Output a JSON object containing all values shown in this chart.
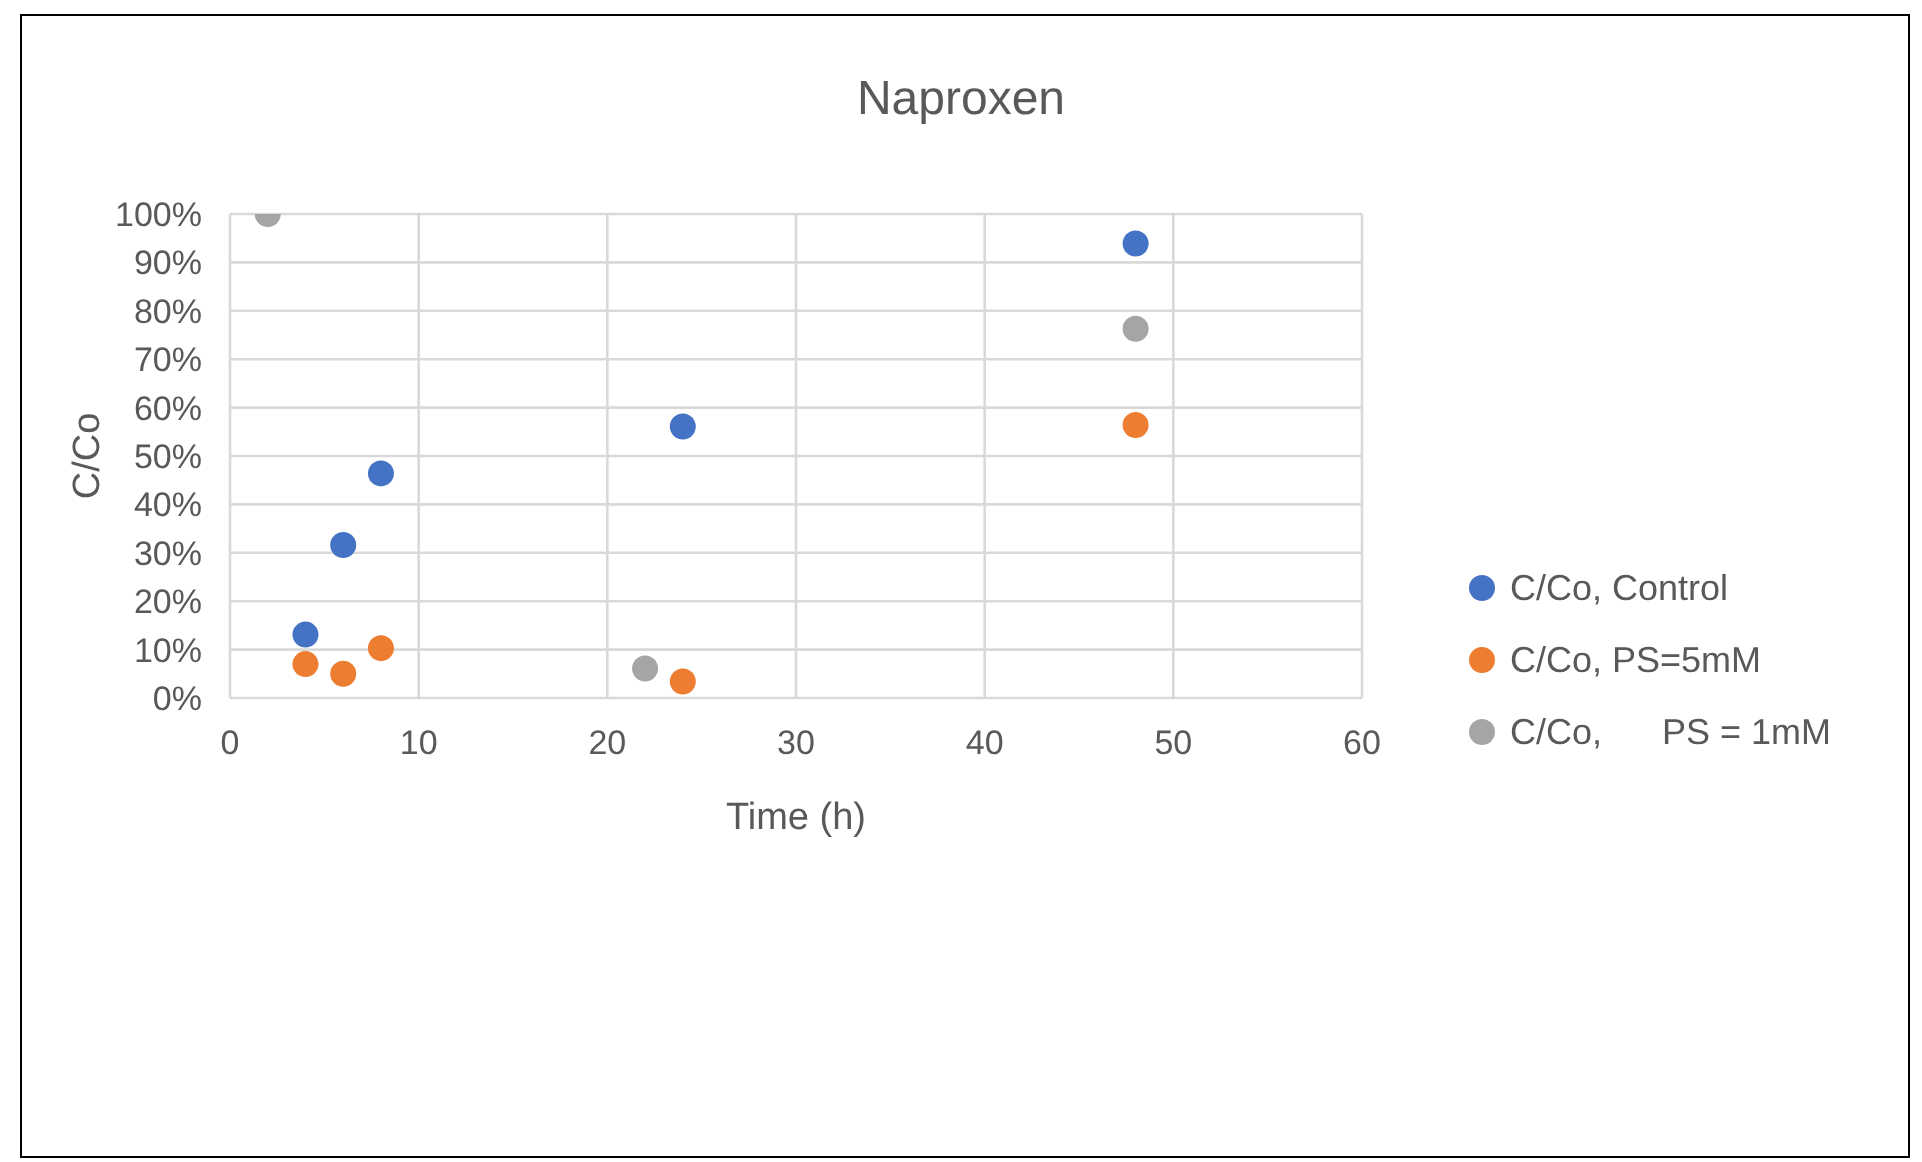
{
  "chart_data": {
    "type": "scatter",
    "title": "Naproxen",
    "xlabel": "Time (h)",
    "ylabel": "C/Co",
    "xlim": [
      0,
      60
    ],
    "xticks": [
      0,
      10,
      20,
      30,
      40,
      50,
      60
    ],
    "ylim": [
      0,
      100
    ],
    "yticks": [
      {
        "value": 0,
        "label": "0%"
      },
      {
        "value": 10,
        "label": "10%"
      },
      {
        "value": 20,
        "label": "20%"
      },
      {
        "value": 30,
        "label": "30%"
      },
      {
        "value": 40,
        "label": "40%"
      },
      {
        "value": 50,
        "label": "50%"
      },
      {
        "value": 60,
        "label": "60%"
      },
      {
        "value": 70,
        "label": "70%"
      },
      {
        "value": 80,
        "label": "80%"
      },
      {
        "value": 90,
        "label": "90%"
      },
      {
        "value": 100,
        "label": "100%"
      }
    ],
    "grid": true,
    "legend": "right",
    "marker": "circle",
    "series": [
      {
        "name": "C/Co, Control",
        "color": "#4472c4",
        "x": [
          4,
          6,
          8,
          24,
          48
        ],
        "values": [
          13.1,
          31.6,
          46.4,
          56.1,
          93.9
        ]
      },
      {
        "name": "C/Co, PS=5mM",
        "color": "#ed7d31",
        "x": [
          4,
          6,
          8,
          24,
          48
        ],
        "values": [
          7.0,
          5.0,
          10.3,
          3.4,
          56.4
        ]
      },
      {
        "name": "C/Co,      PS = 1mM",
        "color": "#a5a5a5",
        "x": [
          2,
          22,
          48
        ],
        "values": [
          100,
          6.1,
          76.3
        ]
      }
    ]
  }
}
